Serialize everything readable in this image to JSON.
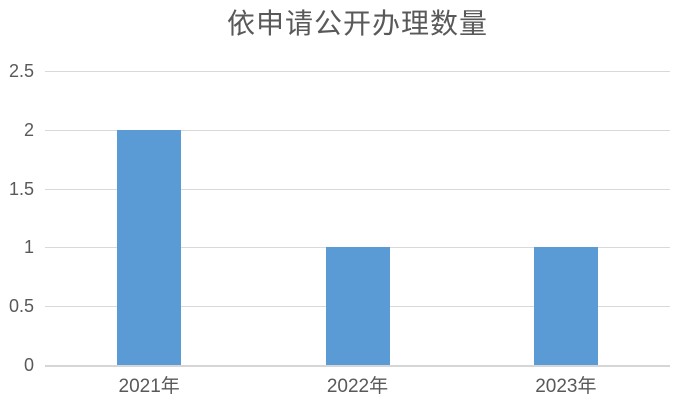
{
  "chart_data": {
    "type": "bar",
    "title": "依申请公开办理数量",
    "categories": [
      "2021年",
      "2022年",
      "2023年"
    ],
    "values": [
      2,
      1,
      1
    ],
    "xlabel": "",
    "ylabel": "",
    "ylim": [
      0,
      2.5
    ],
    "yticks": [
      0,
      0.5,
      1,
      1.5,
      2,
      2.5
    ],
    "y_tick_labels": [
      "0",
      "0.5",
      "1",
      "1.5",
      "2",
      "2.5"
    ],
    "grid": true,
    "legend_position": "none"
  },
  "colors": {
    "bar": "#5B9BD5",
    "gridline": "#D9D9D9",
    "axis_line": "#D6D6D6",
    "text": "#595959",
    "background": "#FFFFFF"
  }
}
